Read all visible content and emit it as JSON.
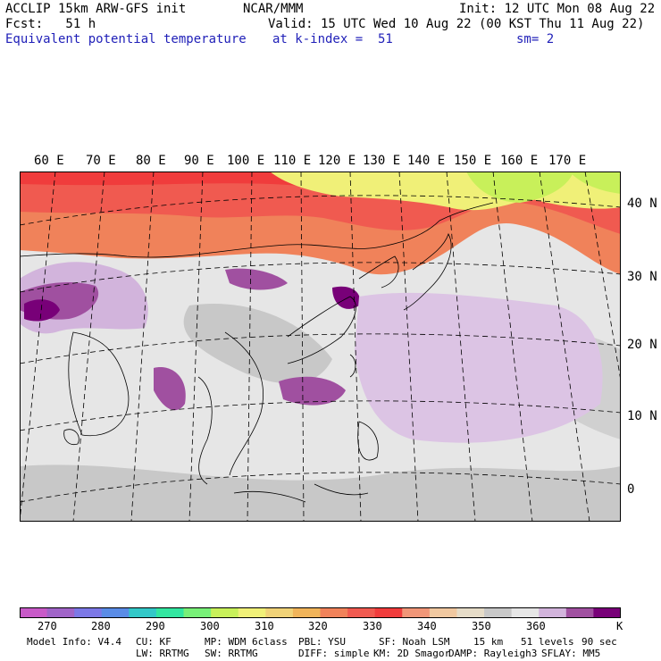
{
  "header": {
    "line1_left": "ACCLIP 15km ARW-GFS init",
    "line1_center": "NCAR/MMM",
    "line1_right": "Init: 12 UTC Mon 08 Aug 22",
    "line2_left": "Fcst:   51 h",
    "line2_right": "Valid: 15 UTC Wed 10 Aug 22 (00 KST Thu 11 Aug 22)",
    "line3_left": "Equivalent potential temperature",
    "line3_center": "at k-index =  51",
    "line3_right": "sm= 2"
  },
  "map": {
    "lon_labels": [
      "60 E",
      "70 E",
      "80 E",
      "90 E",
      "100 E",
      "110 E",
      "120 E",
      "130 E",
      "140 E",
      "150 E",
      "160 E",
      "170 E"
    ],
    "lat_labels": [
      "40 N",
      "30 N",
      "20 N",
      "10 N",
      "0"
    ]
  },
  "colorbar": {
    "colors": [
      "#c85ac8",
      "#a064c8",
      "#7c78e6",
      "#5a8ce6",
      "#32c8c8",
      "#32e6a0",
      "#78f078",
      "#c8f05a",
      "#f0f078",
      "#f0d278",
      "#f0b45a",
      "#f0825a",
      "#f05a50",
      "#f03c3c",
      "#f09678",
      "#f0c8a0",
      "#e6dcc8",
      "#c8c8c8",
      "#e6e6e6",
      "#d2b4dc",
      "#a050a0",
      "#780078"
    ],
    "labels": [
      "270",
      "280",
      "290",
      "300",
      "310",
      "320",
      "330",
      "340",
      "350",
      "360",
      "K"
    ]
  },
  "footer": {
    "line1": [
      "Model Info: V4.4",
      "CU: KF",
      "MP: WDM 6class",
      "PBL: YSU",
      "SF: Noah LSM",
      "15 km",
      "51 levels",
      "90 sec"
    ],
    "line2": [
      "LW: RRTMG",
      "SW: RRTMG",
      "DIFF: simple",
      "KM: 2D Smagor",
      "DAMP: Rayleigh3",
      "SFLAY: MM5"
    ]
  }
}
